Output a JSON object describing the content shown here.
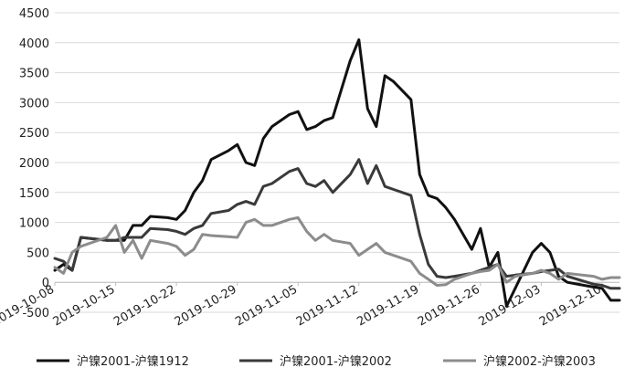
{
  "chart_data": {
    "type": "line",
    "title": "",
    "xlabel": "",
    "ylabel": "",
    "ylim": [
      -500,
      4500
    ],
    "yticks": [
      -500,
      0,
      500,
      1000,
      1500,
      2000,
      2500,
      3000,
      3500,
      4000,
      4500
    ],
    "xticks": [
      "2019-10-08",
      "2019-10-15",
      "2019-10-22",
      "2019-10-29",
      "2019-11-05",
      "2019-11-12",
      "2019-11-19",
      "2019-11-26",
      "2019-12-03",
      "2019-12-10"
    ],
    "grid": "horizontal",
    "legend_position": "bottom",
    "series": [
      {
        "name": "沪镍2001-沪镍1912",
        "color": "#111111",
        "points": [
          [
            "2019-10-08",
            200
          ],
          [
            "2019-10-09",
            300
          ],
          [
            "2019-10-10",
            200
          ],
          [
            "2019-10-11",
            750
          ],
          [
            "2019-10-14",
            700
          ],
          [
            "2019-10-15",
            700
          ],
          [
            "2019-10-16",
            700
          ],
          [
            "2019-10-17",
            950
          ],
          [
            "2019-10-18",
            950
          ],
          [
            "2019-10-19",
            1100
          ],
          [
            "2019-10-21",
            1080
          ],
          [
            "2019-10-22",
            1050
          ],
          [
            "2019-10-23",
            1200
          ],
          [
            "2019-10-24",
            1500
          ],
          [
            "2019-10-25",
            1700
          ],
          [
            "2019-10-26",
            2050
          ],
          [
            "2019-10-28",
            2200
          ],
          [
            "2019-10-29",
            2300
          ],
          [
            "2019-10-30",
            2000
          ],
          [
            "2019-10-31",
            1950
          ],
          [
            "2019-11-01",
            2400
          ],
          [
            "2019-11-02",
            2600
          ],
          [
            "2019-11-04",
            2800
          ],
          [
            "2019-11-05",
            2850
          ],
          [
            "2019-11-06",
            2550
          ],
          [
            "2019-11-07",
            2600
          ],
          [
            "2019-11-08",
            2700
          ],
          [
            "2019-11-09",
            2750
          ],
          [
            "2019-11-11",
            3700
          ],
          [
            "2019-11-12",
            4050
          ],
          [
            "2019-11-13",
            2900
          ],
          [
            "2019-11-14",
            2600
          ],
          [
            "2019-11-15",
            3450
          ],
          [
            "2019-11-16",
            3350
          ],
          [
            "2019-11-18",
            3050
          ],
          [
            "2019-11-19",
            1800
          ],
          [
            "2019-11-20",
            1450
          ],
          [
            "2019-11-21",
            1400
          ],
          [
            "2019-11-22",
            1250
          ],
          [
            "2019-11-23",
            1050
          ],
          [
            "2019-11-25",
            550
          ],
          [
            "2019-11-26",
            900
          ],
          [
            "2019-11-27",
            250
          ],
          [
            "2019-11-28",
            500
          ],
          [
            "2019-11-29",
            -400
          ],
          [
            "2019-11-30",
            -100
          ],
          [
            "2019-12-02",
            500
          ],
          [
            "2019-12-03",
            650
          ],
          [
            "2019-12-04",
            500
          ],
          [
            "2019-12-05",
            100
          ],
          [
            "2019-12-06",
            0
          ],
          [
            "2019-12-09",
            -80
          ],
          [
            "2019-12-10",
            -100
          ],
          [
            "2019-12-11",
            -300
          ],
          [
            "2019-12-12",
            -300
          ]
        ]
      },
      {
        "name": "沪镍2001-沪镍2002",
        "color": "#3a3a3a",
        "points": [
          [
            "2019-10-08",
            400
          ],
          [
            "2019-10-09",
            350
          ],
          [
            "2019-10-10",
            200
          ],
          [
            "2019-10-11",
            750
          ],
          [
            "2019-10-14",
            700
          ],
          [
            "2019-10-15",
            700
          ],
          [
            "2019-10-16",
            750
          ],
          [
            "2019-10-17",
            750
          ],
          [
            "2019-10-18",
            750
          ],
          [
            "2019-10-19",
            900
          ],
          [
            "2019-10-21",
            880
          ],
          [
            "2019-10-22",
            850
          ],
          [
            "2019-10-23",
            800
          ],
          [
            "2019-10-24",
            900
          ],
          [
            "2019-10-25",
            950
          ],
          [
            "2019-10-26",
            1150
          ],
          [
            "2019-10-28",
            1200
          ],
          [
            "2019-10-29",
            1300
          ],
          [
            "2019-10-30",
            1350
          ],
          [
            "2019-10-31",
            1300
          ],
          [
            "2019-11-01",
            1600
          ],
          [
            "2019-11-02",
            1650
          ],
          [
            "2019-11-04",
            1850
          ],
          [
            "2019-11-05",
            1900
          ],
          [
            "2019-11-06",
            1650
          ],
          [
            "2019-11-07",
            1600
          ],
          [
            "2019-11-08",
            1700
          ],
          [
            "2019-11-09",
            1500
          ],
          [
            "2019-11-11",
            1800
          ],
          [
            "2019-11-12",
            2050
          ],
          [
            "2019-11-13",
            1650
          ],
          [
            "2019-11-14",
            1950
          ],
          [
            "2019-11-15",
            1600
          ],
          [
            "2019-11-16",
            1550
          ],
          [
            "2019-11-18",
            1450
          ],
          [
            "2019-11-19",
            800
          ],
          [
            "2019-11-20",
            300
          ],
          [
            "2019-11-21",
            100
          ],
          [
            "2019-11-22",
            80
          ],
          [
            "2019-11-23",
            100
          ],
          [
            "2019-11-25",
            150
          ],
          [
            "2019-11-26",
            200
          ],
          [
            "2019-11-27",
            250
          ],
          [
            "2019-11-28",
            300
          ],
          [
            "2019-11-29",
            100
          ],
          [
            "2019-11-30",
            120
          ],
          [
            "2019-12-02",
            150
          ],
          [
            "2019-12-03",
            180
          ],
          [
            "2019-12-04",
            200
          ],
          [
            "2019-12-05",
            220
          ],
          [
            "2019-12-06",
            100
          ],
          [
            "2019-12-09",
            -30
          ],
          [
            "2019-12-10",
            -50
          ],
          [
            "2019-12-11",
            -100
          ],
          [
            "2019-12-12",
            -100
          ]
        ]
      },
      {
        "name": "沪镍2002-沪镍2003",
        "color": "#8c8c8c",
        "points": [
          [
            "2019-10-08",
            250
          ],
          [
            "2019-10-09",
            150
          ],
          [
            "2019-10-10",
            500
          ],
          [
            "2019-10-11",
            600
          ],
          [
            "2019-10-14",
            750
          ],
          [
            "2019-10-15",
            950
          ],
          [
            "2019-10-16",
            500
          ],
          [
            "2019-10-17",
            700
          ],
          [
            "2019-10-18",
            400
          ],
          [
            "2019-10-19",
            700
          ],
          [
            "2019-10-21",
            650
          ],
          [
            "2019-10-22",
            600
          ],
          [
            "2019-10-23",
            450
          ],
          [
            "2019-10-24",
            550
          ],
          [
            "2019-10-25",
            800
          ],
          [
            "2019-10-26",
            780
          ],
          [
            "2019-10-28",
            760
          ],
          [
            "2019-10-29",
            750
          ],
          [
            "2019-10-30",
            1000
          ],
          [
            "2019-10-31",
            1050
          ],
          [
            "2019-11-01",
            950
          ],
          [
            "2019-11-02",
            950
          ],
          [
            "2019-11-04",
            1050
          ],
          [
            "2019-11-05",
            1080
          ],
          [
            "2019-11-06",
            850
          ],
          [
            "2019-11-07",
            700
          ],
          [
            "2019-11-08",
            800
          ],
          [
            "2019-11-09",
            700
          ],
          [
            "2019-11-11",
            650
          ],
          [
            "2019-11-12",
            450
          ],
          [
            "2019-11-13",
            550
          ],
          [
            "2019-11-14",
            650
          ],
          [
            "2019-11-15",
            500
          ],
          [
            "2019-11-16",
            450
          ],
          [
            "2019-11-18",
            350
          ],
          [
            "2019-11-19",
            150
          ],
          [
            "2019-11-20",
            50
          ],
          [
            "2019-11-21",
            -50
          ],
          [
            "2019-11-22",
            -40
          ],
          [
            "2019-11-23",
            50
          ],
          [
            "2019-11-25",
            150
          ],
          [
            "2019-11-26",
            180
          ],
          [
            "2019-11-27",
            200
          ],
          [
            "2019-11-28",
            300
          ],
          [
            "2019-11-29",
            0
          ],
          [
            "2019-11-30",
            100
          ],
          [
            "2019-12-02",
            150
          ],
          [
            "2019-12-03",
            200
          ],
          [
            "2019-12-04",
            150
          ],
          [
            "2019-12-05",
            50
          ],
          [
            "2019-12-06",
            150
          ],
          [
            "2019-12-09",
            100
          ],
          [
            "2019-12-10",
            50
          ],
          [
            "2019-12-11",
            80
          ],
          [
            "2019-12-12",
            80
          ]
        ]
      }
    ]
  }
}
